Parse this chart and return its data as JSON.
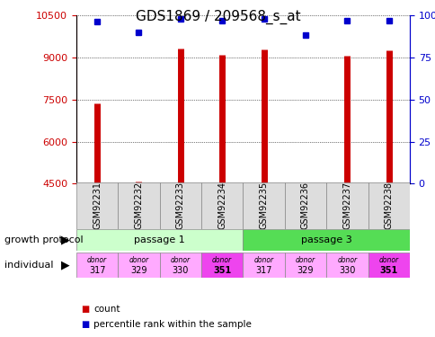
{
  "title": "GDS1869 / 209568_s_at",
  "samples": [
    "GSM92231",
    "GSM92232",
    "GSM92233",
    "GSM92234",
    "GSM92235",
    "GSM92236",
    "GSM92237",
    "GSM92238"
  ],
  "counts": [
    7350,
    4580,
    9300,
    9100,
    9280,
    4520,
    9050,
    9250
  ],
  "percentiles": [
    96,
    90,
    98,
    97,
    98,
    88,
    97,
    97
  ],
  "ylim_left": [
    4500,
    10500
  ],
  "ylim_right": [
    0,
    100
  ],
  "yticks_left": [
    4500,
    6000,
    7500,
    9000,
    10500
  ],
  "yticks_right": [
    0,
    25,
    50,
    75,
    100
  ],
  "passage1_color": "#ccffcc",
  "passage3_color": "#55dd55",
  "donors": [
    "317",
    "329",
    "330",
    "351",
    "317",
    "329",
    "330",
    "351"
  ],
  "donor_colors_light": "#ffaaff",
  "donor_colors_bold": "#ee44ee",
  "donor_bold_indices": [
    3,
    7
  ],
  "bar_color": "#cc0000",
  "dot_color": "#0000cc",
  "left_axis_color": "#cc0000",
  "right_axis_color": "#0000cc",
  "sample_box_color": "#dddddd",
  "title_fontsize": 11,
  "label_fontsize": 8,
  "tick_fontsize": 8,
  "sample_fontsize": 7
}
